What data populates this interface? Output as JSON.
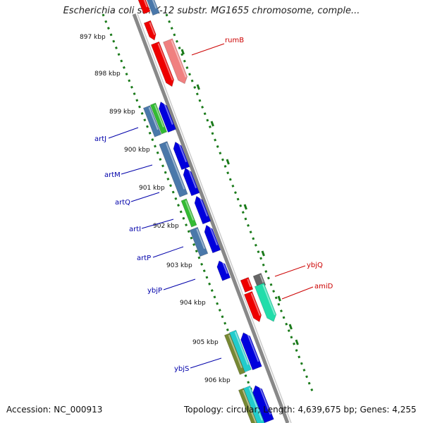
{
  "title": "Escherichia coli str. K-12 substr. MG1655 chromosome, comple...",
  "footer": {
    "accession": "Accession: NC_000913",
    "summary": "Topology: circular; Length: 4,639,675 bp; Genes: 4,255"
  },
  "kbp_labels": [
    "897 kbp",
    "898 kbp",
    "899 kbp",
    "900 kbp",
    "901 kbp",
    "902 kbp",
    "903 kbp",
    "904 kbp",
    "905 kbp",
    "906 kbp"
  ],
  "gene_labels": [
    {
      "name": "rumB",
      "color": "#cc0000"
    },
    {
      "name": "ybjQ",
      "color": "#cc0000"
    },
    {
      "name": "amiD",
      "color": "#cc0000"
    },
    {
      "name": "artJ",
      "color": "#0000aa"
    },
    {
      "name": "artM",
      "color": "#0000aa"
    },
    {
      "name": "artQ",
      "color": "#0000aa"
    },
    {
      "name": "artI",
      "color": "#0000aa"
    },
    {
      "name": "artP",
      "color": "#0000aa"
    },
    {
      "name": "ybjP",
      "color": "#0000aa"
    },
    {
      "name": "ybjS",
      "color": "#0000aa"
    }
  ],
  "colors": {
    "backbone": "#888888",
    "ticks": "#1a7a1a",
    "cds_forward": "#ee0000",
    "cds_forward_light": "#f08080",
    "cds_reverse": "#0000dd",
    "steelblue": "#4a78aa",
    "green": "#33bb33",
    "olive": "#778833",
    "teal": "#22cccc",
    "mint": "#22ddaa",
    "grey": "#666666"
  }
}
